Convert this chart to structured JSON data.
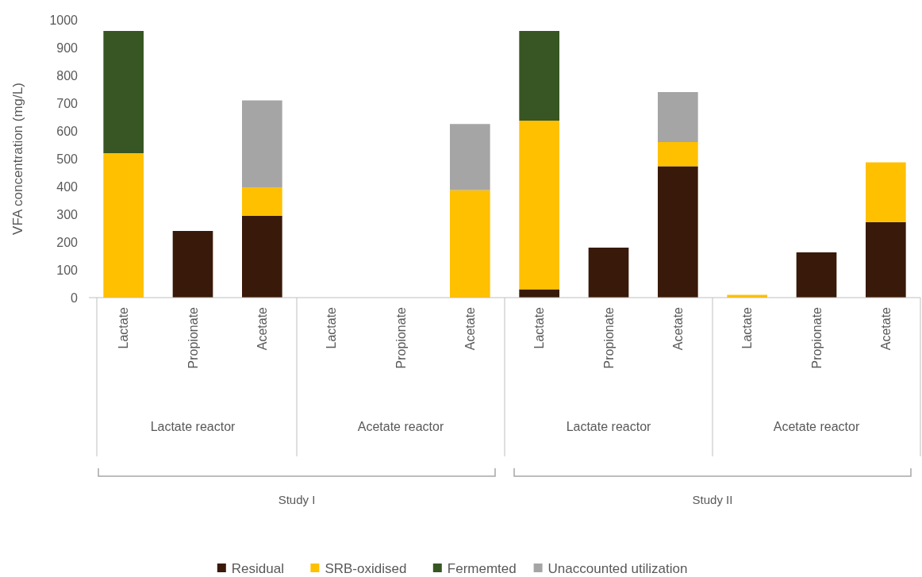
{
  "chart_data": {
    "type": "bar",
    "stacked": true,
    "ylabel": "VFA concentration (mg/L)",
    "categories": [
      "Lactate",
      "Propionate",
      "Acetate",
      "Lactate",
      "Propionate",
      "Acetate",
      "Lactate",
      "Propionate",
      "Acetate",
      "Lactate",
      "Propionate",
      "Acetate"
    ],
    "series": [
      {
        "name": "Residual",
        "color": "#391909",
        "values": [
          null,
          240,
          295,
          null,
          null,
          null,
          30,
          180,
          473,
          null,
          163,
          272
        ]
      },
      {
        "name": "SRB-oxidised",
        "color": "#ffc000",
        "values": [
          520,
          null,
          102,
          null,
          null,
          387,
          607,
          null,
          87,
          10,
          null,
          215
        ]
      },
      {
        "name": "Fermemted",
        "color": "#375623",
        "values": [
          440,
          null,
          null,
          null,
          null,
          null,
          323,
          null,
          null,
          null,
          null,
          null
        ]
      },
      {
        "name": "Unaccounted utilization",
        "color": "#a5a5a5",
        "values": [
          null,
          null,
          313,
          null,
          null,
          238,
          null,
          null,
          180,
          null,
          null,
          null
        ]
      }
    ],
    "ylim": [
      0,
      1000
    ],
    "yticks": [
      0,
      100,
      200,
      300,
      400,
      500,
      600,
      700,
      800,
      900,
      1000
    ],
    "annotations": [
      "Lactate reactor",
      "Acetate reactor",
      "Lactate reactor",
      "Acetate reactor",
      "Study I",
      "Study II"
    ],
    "legend": "bottom"
  }
}
